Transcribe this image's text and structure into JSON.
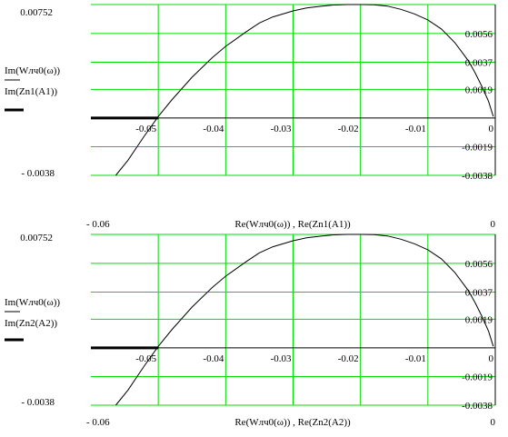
{
  "colors": {
    "grid": "#00dd00",
    "curve": "#000000",
    "axis": "#000000",
    "background": "#ffffff"
  },
  "chart_data": [
    {
      "type": "line",
      "xlim": [
        -0.06,
        0
      ],
      "ylim": [
        -0.0038,
        0.00752
      ],
      "x_range_labels": [
        "- 0.06",
        "0"
      ],
      "y_range_labels": [
        "0.00752",
        "- 0.0038"
      ],
      "x_tick_labels": [
        {
          "value": -0.05,
          "label": "-0.05"
        },
        {
          "value": -0.04,
          "label": "-0.04"
        },
        {
          "value": -0.03,
          "label": "-0.03"
        },
        {
          "value": -0.02,
          "label": "-0.02"
        },
        {
          "value": -0.01,
          "label": "-0.01"
        },
        {
          "value": 0,
          "label": "0"
        }
      ],
      "y_tick_labels": [
        {
          "value": 0.0056,
          "label": "0.0056"
        },
        {
          "value": 0.0037,
          "label": "0.0037"
        },
        {
          "value": 0.0019,
          "label": "0.0019"
        },
        {
          "value": -0.0019,
          "label": "-0.0019"
        },
        {
          "value": -0.0038,
          "label": "-0.0038"
        }
      ],
      "ylabel_lines": [
        "Im(Wлч0(ω))",
        "Im(Zn1(A1))"
      ],
      "xlabel": "Re(Wлч0(ω)) , Re(Zn1(A1))",
      "series": [
        {
          "name": "Im(Wлч0(ω))",
          "x": [
            -0.0563,
            -0.0545,
            -0.052,
            -0.05,
            -0.048,
            -0.045,
            -0.042,
            -0.04,
            -0.037,
            -0.035,
            -0.033,
            -0.03,
            -0.028,
            -0.026,
            -0.024,
            -0.022,
            -0.02,
            -0.018,
            -0.016,
            -0.014,
            -0.012,
            -0.01,
            -0.008,
            -0.006,
            -0.004,
            -0.003,
            -0.002,
            -0.001,
            -0.0003
          ],
          "y": [
            -0.0038,
            -0.0028,
            -0.00115,
            0.0001,
            0.0012,
            0.0027,
            0.004,
            0.00475,
            0.0057,
            0.0063,
            0.0067,
            0.0071,
            0.0073,
            0.0074,
            0.00749,
            0.00752,
            0.00752,
            0.0075,
            0.00742,
            0.0072,
            0.0069,
            0.0065,
            0.0059,
            0.005,
            0.0038,
            0.003,
            0.0021,
            0.0011,
            0.0001
          ]
        },
        {
          "name": "Im(Zn1(A1))",
          "x": [
            -0.06,
            -0.05
          ],
          "y": [
            0,
            0
          ]
        }
      ]
    },
    {
      "type": "line",
      "xlim": [
        -0.06,
        0
      ],
      "ylim": [
        -0.0038,
        0.00752
      ],
      "x_range_labels": [
        "- 0.06",
        "0"
      ],
      "y_range_labels": [
        "0.00752",
        "- 0.0038"
      ],
      "x_tick_labels": [
        {
          "value": -0.05,
          "label": "-0.05"
        },
        {
          "value": -0.04,
          "label": "-0.04"
        },
        {
          "value": -0.03,
          "label": "-0.03"
        },
        {
          "value": -0.02,
          "label": "-0.02"
        },
        {
          "value": -0.01,
          "label": "-0.01"
        },
        {
          "value": 0,
          "label": "0"
        }
      ],
      "y_tick_labels": [
        {
          "value": 0.0056,
          "label": "0.0056"
        },
        {
          "value": 0.0037,
          "label": "0.0037"
        },
        {
          "value": 0.0019,
          "label": "0.0019"
        },
        {
          "value": -0.0019,
          "label": "-0.0019"
        },
        {
          "value": -0.0038,
          "label": "-0.0038"
        }
      ],
      "ylabel_lines": [
        "Im(Wлч0(ω))",
        "Im(Zn2(A2))"
      ],
      "xlabel": "Re(Wлч0(ω)) , Re(Zn2(A2))",
      "series": [
        {
          "name": "Im(Wлч0(ω))",
          "x": [
            -0.0563,
            -0.0545,
            -0.052,
            -0.05,
            -0.048,
            -0.045,
            -0.042,
            -0.04,
            -0.037,
            -0.035,
            -0.033,
            -0.03,
            -0.028,
            -0.026,
            -0.024,
            -0.022,
            -0.02,
            -0.018,
            -0.016,
            -0.014,
            -0.012,
            -0.01,
            -0.008,
            -0.006,
            -0.004,
            -0.003,
            -0.002,
            -0.001,
            -0.0003
          ],
          "y": [
            -0.0038,
            -0.0028,
            -0.00115,
            0.0001,
            0.0012,
            0.0027,
            0.004,
            0.00475,
            0.0057,
            0.0063,
            0.0067,
            0.0071,
            0.0073,
            0.0074,
            0.00749,
            0.00752,
            0.00752,
            0.0075,
            0.00742,
            0.0072,
            0.0069,
            0.0065,
            0.0059,
            0.005,
            0.0038,
            0.003,
            0.0021,
            0.0011,
            0.0001
          ]
        },
        {
          "name": "Im(Zn2(A2))",
          "x": [
            -0.06,
            -0.05
          ],
          "y": [
            0,
            0
          ]
        }
      ]
    }
  ]
}
